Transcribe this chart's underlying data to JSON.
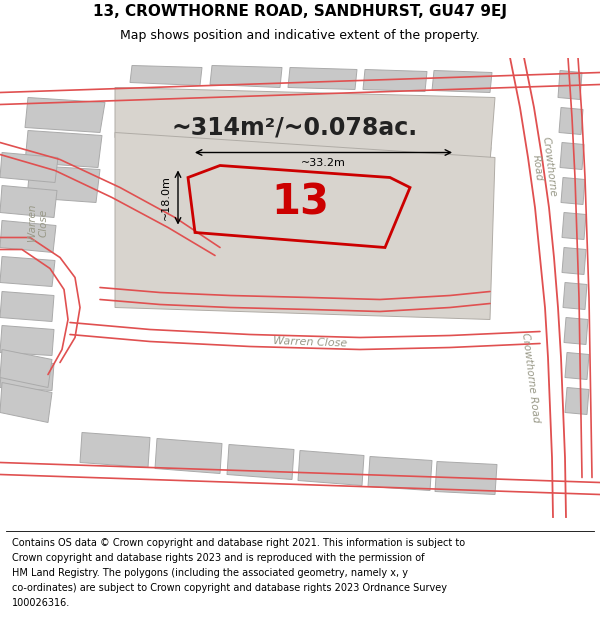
{
  "title_line1": "13, CROWTHORNE ROAD, SANDHURST, GU47 9EJ",
  "title_line2": "Map shows position and indicative extent of the property.",
  "footer_lines": [
    "Contains OS data © Crown copyright and database right 2021. This information is subject to",
    "Crown copyright and database rights 2023 and is reproduced with the permission of",
    "HM Land Registry. The polygons (including the associated geometry, namely x, y",
    "co-ordinates) are subject to Crown copyright and database rights 2023 Ordnance Survey",
    "100026316."
  ],
  "area_label": "~314m²/~0.078ac.",
  "plot_number": "13",
  "dim_vertical": "~18.0m",
  "dim_horizontal": "~33.2m",
  "map_bg": "#ede9e3",
  "block_fc": "#c8c8c8",
  "block_ec": "#aaaaaa",
  "red_line": "#e05050",
  "highlight_red": "#cc0000",
  "road_text_color": "#999988",
  "title_fontsize": 11,
  "subtitle_fontsize": 9,
  "footer_fontsize": 7,
  "area_fontsize": 17,
  "plot_num_fontsize": 30,
  "dim_fontsize": 8
}
